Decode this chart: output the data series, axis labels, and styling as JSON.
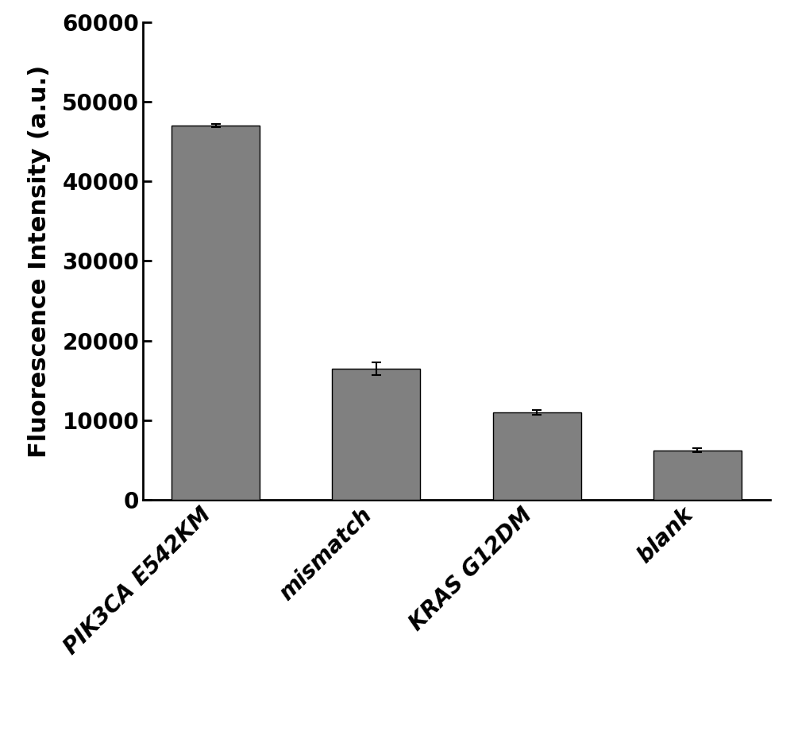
{
  "categories": [
    "PIK3CA E542KM",
    "mismatch",
    "KRAS G12DM",
    "blank"
  ],
  "values": [
    47000,
    16500,
    11000,
    6200
  ],
  "errors": [
    200,
    800,
    300,
    250
  ],
  "bar_color": "#808080",
  "bar_edgecolor": "#000000",
  "ylabel": "Fluorescence Intensity (a.u.)",
  "ylim": [
    0,
    60000
  ],
  "yticks": [
    0,
    10000,
    20000,
    30000,
    40000,
    50000,
    60000
  ],
  "background_color": "#ffffff",
  "bar_width": 0.55,
  "error_capsize": 4,
  "error_color": "#000000",
  "ylabel_fontsize": 22,
  "tick_fontsize": 20,
  "xlabel_rotation": 45,
  "figure_width": 10.0,
  "figure_height": 9.25,
  "spine_linewidth": 2.0
}
